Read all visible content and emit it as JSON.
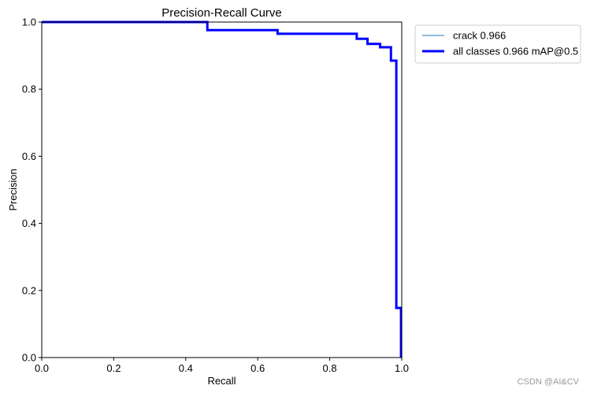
{
  "chart_data": {
    "type": "line",
    "title": "Precision-Recall Curve",
    "xlabel": "Recall",
    "ylabel": "Precision",
    "xlim": [
      0,
      1
    ],
    "ylim": [
      0,
      1
    ],
    "x_ticks": [
      "0.0",
      "0.2",
      "0.4",
      "0.6",
      "0.8",
      "1.0"
    ],
    "y_ticks": [
      "0.0",
      "0.2",
      "0.4",
      "0.6",
      "0.8",
      "1.0"
    ],
    "grid": false,
    "legend_position": "outside-top-right",
    "series": [
      {
        "name": "crack 0.966",
        "color": "#1f77b4",
        "x": [
          0.0,
          0.46,
          0.46,
          0.655,
          0.655,
          0.875,
          0.875,
          0.905,
          0.905,
          0.94,
          0.94,
          0.97,
          0.97,
          0.985,
          0.985,
          0.998,
          0.998
        ],
        "y": [
          1.0,
          1.0,
          0.976,
          0.976,
          0.965,
          0.965,
          0.95,
          0.95,
          0.935,
          0.935,
          0.925,
          0.925,
          0.885,
          0.885,
          0.148,
          0.148,
          0.0
        ]
      },
      {
        "name": "all classes 0.966 mAP@0.5",
        "color": "#0000ff",
        "x": [
          0.0,
          0.46,
          0.46,
          0.655,
          0.655,
          0.875,
          0.875,
          0.905,
          0.905,
          0.94,
          0.94,
          0.97,
          0.97,
          0.985,
          0.985,
          0.998,
          0.998
        ],
        "y": [
          1.0,
          1.0,
          0.976,
          0.976,
          0.965,
          0.965,
          0.95,
          0.95,
          0.935,
          0.935,
          0.925,
          0.925,
          0.885,
          0.885,
          0.148,
          0.148,
          0.0
        ]
      }
    ]
  },
  "watermark": "CSDN @AI&CV"
}
